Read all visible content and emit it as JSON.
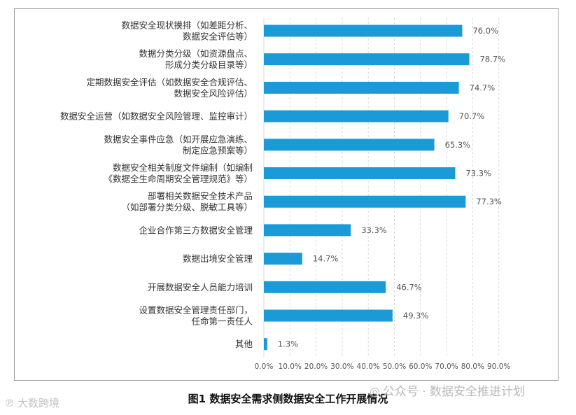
{
  "chart_data": {
    "type": "bar",
    "orientation": "horizontal",
    "categories": [
      [
        "数据安全现状摸排（如差距分析、",
        "数据安全评估等）"
      ],
      [
        "数据分类分级（如资源盘点、",
        "形成分类分级目录等）"
      ],
      [
        "定期数据安全评估（如数据安全合规评估、",
        "数据安全风险评估）"
      ],
      [
        "数据安全运营（如数据安全风险管理、监控审计）"
      ],
      [
        "数据安全事件应急（如开展应急演练、",
        "制定应急预案等）"
      ],
      [
        "数据安全相关制度文件编制（如编制",
        "《数据全生命周期安全管理规范》等）"
      ],
      [
        "部署相关数据安全技术产品",
        "（如部署分类分级、脱敏工具等）"
      ],
      [
        "企业合作第三方数据安全管理"
      ],
      [
        "数据出境安全管理"
      ],
      [
        "开展数据安全人员能力培训"
      ],
      [
        "设置数据安全管理责任部门，",
        "任命第一责任人"
      ],
      [
        "其他"
      ]
    ],
    "values": [
      76.0,
      78.7,
      74.7,
      70.7,
      65.3,
      73.3,
      77.3,
      33.3,
      14.7,
      46.7,
      49.3,
      1.3
    ],
    "value_labels": [
      "76.0%",
      "78.7%",
      "74.7%",
      "70.7%",
      "65.3%",
      "73.3%",
      "77.3%",
      "33.3%",
      "14.7%",
      "46.7%",
      "49.3%",
      "1.3%"
    ],
    "x_ticks": [
      "0.0%",
      "10.0%",
      "20.0%",
      "30.0%",
      "40.0%",
      "50.0%",
      "60.0%",
      "70.0%",
      "80.0%",
      "90.0%"
    ],
    "xlim": [
      0,
      90
    ],
    "grid": "vertical dashed",
    "bar_color": "#1a9bd7",
    "grid_color": "#d8d8d8"
  },
  "caption": "图1 数据安全需求侧数据安全工作开展情况",
  "watermark_right": "公众号 · 数据安全推进计划",
  "watermark_left": "大数跨境"
}
